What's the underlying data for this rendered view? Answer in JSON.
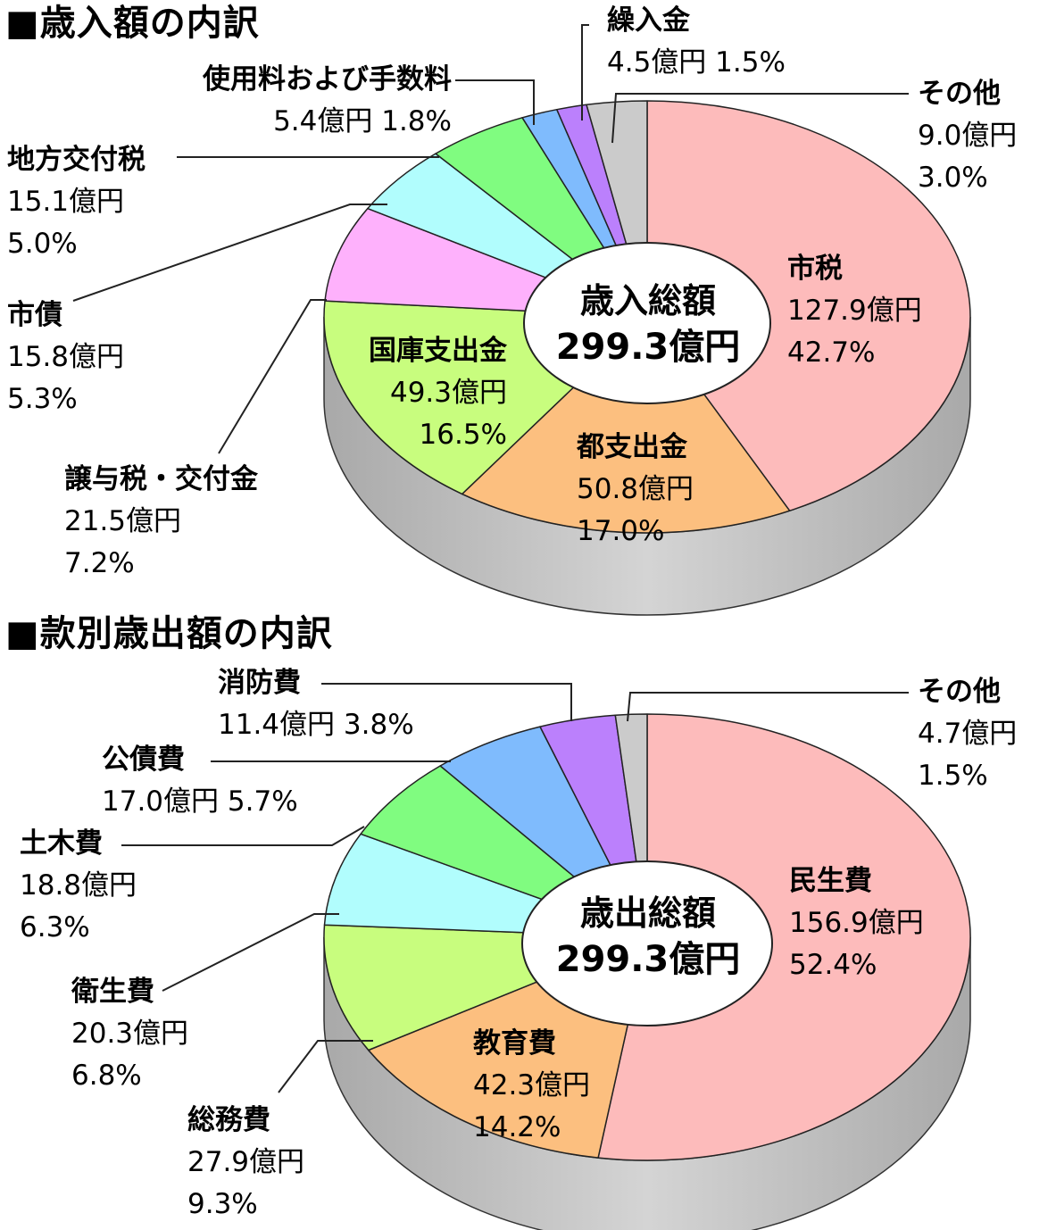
{
  "chart_data": [
    {
      "type": "pie",
      "title": "■歳入額の内訳",
      "center_label": "歳入総額",
      "total": "299.3億円",
      "slices": [
        {
          "name": "市税",
          "value": 127.9,
          "value_text": "127.9億円",
          "percent": 42.7,
          "percent_text": "42.7%",
          "color": "#fdbbbb"
        },
        {
          "name": "都支出金",
          "value": 50.8,
          "value_text": "50.8億円",
          "percent": 17.0,
          "percent_text": "17.0%",
          "color": "#fcbf7f"
        },
        {
          "name": "国庫支出金",
          "value": 49.3,
          "value_text": "49.3億円",
          "percent": 16.5,
          "percent_text": "16.5%",
          "color": "#c8fd7e"
        },
        {
          "name": "譲与税・交付金",
          "value": 21.5,
          "value_text": "21.5億円",
          "percent": 7.2,
          "percent_text": "7.2%",
          "color": "#feb1fc"
        },
        {
          "name": "市債",
          "value": 15.8,
          "value_text": "15.8億円",
          "percent": 5.3,
          "percent_text": "5.3%",
          "color": "#b1fdfd"
        },
        {
          "name": "地方交付税",
          "value": 15.1,
          "value_text": "15.1億円",
          "percent": 5.0,
          "percent_text": "5.0%",
          "color": "#80fc80"
        },
        {
          "name": "使用料および手数料",
          "value": 5.4,
          "value_text": "5.4億円",
          "percent": 1.8,
          "percent_text": "1.8%",
          "color": "#7fbbfd"
        },
        {
          "name": "繰入金",
          "value": 4.5,
          "value_text": "4.5億円",
          "percent": 1.5,
          "percent_text": "1.5%",
          "color": "#bb80fc"
        },
        {
          "name": "その他",
          "value": 9.0,
          "value_text": "9.0億円",
          "percent": 3.0,
          "percent_text": "3.0%",
          "color": "#cbcbcb"
        }
      ]
    },
    {
      "type": "pie",
      "title": "■款別歳出額の内訳",
      "center_label": "歳出総額",
      "total": "299.3億円",
      "slices": [
        {
          "name": "民生費",
          "value": 156.9,
          "value_text": "156.9億円",
          "percent": 52.4,
          "percent_text": "52.4%",
          "color": "#fdbbbb"
        },
        {
          "name": "教育費",
          "value": 42.3,
          "value_text": "42.3億円",
          "percent": 14.2,
          "percent_text": "14.2%",
          "color": "#fcbf7f"
        },
        {
          "name": "総務費",
          "value": 27.9,
          "value_text": "27.9億円",
          "percent": 9.3,
          "percent_text": "9.3%",
          "color": "#c8fd7e"
        },
        {
          "name": "衛生費",
          "value": 20.3,
          "value_text": "20.3億円",
          "percent": 6.8,
          "percent_text": "6.8%",
          "color": "#b1fdfd"
        },
        {
          "name": "土木費",
          "value": 18.8,
          "value_text": "18.8億円",
          "percent": 6.3,
          "percent_text": "6.3%",
          "color": "#80fc80"
        },
        {
          "name": "公債費",
          "value": 17.0,
          "value_text": "17.0億円",
          "percent": 5.7,
          "percent_text": "5.7%",
          "color": "#7fbbfd"
        },
        {
          "name": "消防費",
          "value": 11.4,
          "value_text": "11.4億円",
          "percent": 3.8,
          "percent_text": "3.8%",
          "color": "#bb80fc"
        },
        {
          "name": "その他",
          "value": 4.7,
          "value_text": "4.7億円",
          "percent": 1.5,
          "percent_text": "1.5%",
          "color": "#cbcbcb"
        }
      ]
    }
  ]
}
